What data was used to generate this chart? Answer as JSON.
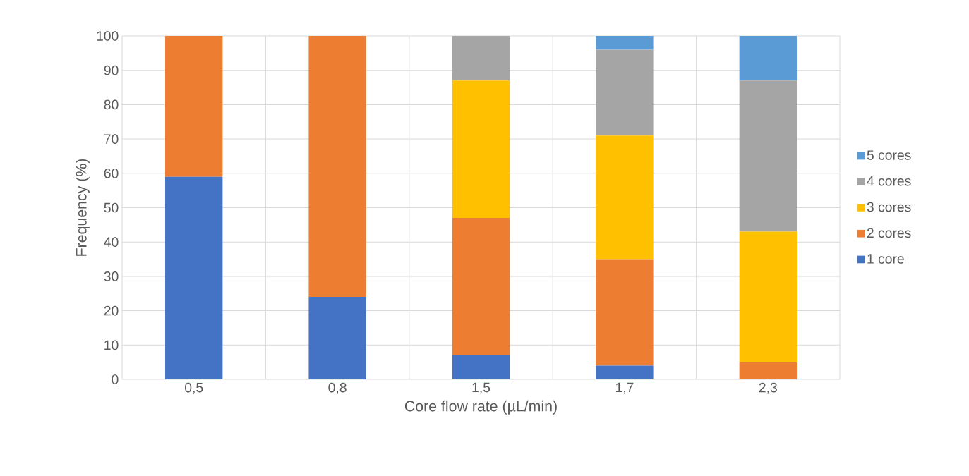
{
  "chart_data": {
    "type": "bar",
    "stacked": true,
    "xlabel": "Core flow rate (µL/min)",
    "ylabel": "Frequency (%)",
    "categories": [
      "0,5",
      "0,8",
      "1,5",
      "1,7",
      "2,3"
    ],
    "series": [
      {
        "name": "1 core",
        "color": "#4472c4",
        "values": [
          59,
          24,
          7,
          4,
          0
        ]
      },
      {
        "name": "2 cores",
        "color": "#ed7d31",
        "values": [
          41,
          76,
          40,
          31,
          5
        ]
      },
      {
        "name": "3 cores",
        "color": "#ffc000",
        "values": [
          0,
          0,
          40,
          36,
          38
        ]
      },
      {
        "name": "4 cores",
        "color": "#a5a5a5",
        "values": [
          0,
          0,
          13,
          25,
          44
        ]
      },
      {
        "name": "5 cores",
        "color": "#5b9bd5",
        "values": [
          0,
          0,
          0,
          4,
          13
        ]
      }
    ],
    "ylim": [
      0,
      100
    ],
    "yticks": [
      0,
      10,
      20,
      30,
      40,
      50,
      60,
      70,
      80,
      90,
      100
    ],
    "grid": true,
    "legend": "right"
  }
}
